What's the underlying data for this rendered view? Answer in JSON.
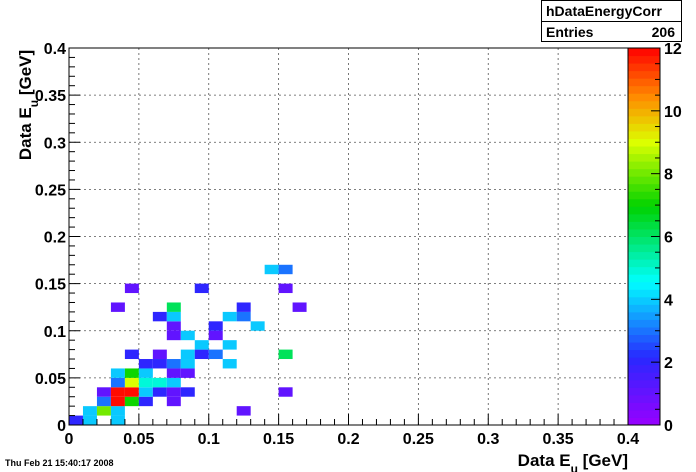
{
  "stats": {
    "title": "hDataEnergyCorr",
    "entries_label": "Entries",
    "entries_value": "206"
  },
  "timestamp": "Thu Feb 21 15:40:17 2008",
  "chart_data": {
    "type": "heatmap",
    "xlabel": "Data E_u [GeV]",
    "ylabel": "Data E_u [GeV]",
    "xlim": [
      0,
      0.4
    ],
    "ylim": [
      0,
      0.4
    ],
    "xticks": [
      "0",
      "0.05",
      "0.1",
      "0.15",
      "0.2",
      "0.25",
      "0.3",
      "0.35",
      "0.4"
    ],
    "yticks": [
      "0",
      "0.05",
      "0.1",
      "0.15",
      "0.2",
      "0.25",
      "0.3",
      "0.35",
      "0.4"
    ],
    "zlim": [
      0,
      12
    ],
    "zticks": [
      "0",
      "2",
      "4",
      "6",
      "8",
      "10",
      "12"
    ],
    "grid": true,
    "bin_width": 0.01,
    "cells": [
      {
        "x": 0.0,
        "y": 0.01,
        "z": 2
      },
      {
        "x": 0.01,
        "y": 0.01,
        "z": 4
      },
      {
        "x": 0.01,
        "y": 0.02,
        "z": 4
      },
      {
        "x": 0.03,
        "y": 0.01,
        "z": 4
      },
      {
        "x": 0.02,
        "y": 0.02,
        "z": 8
      },
      {
        "x": 0.03,
        "y": 0.02,
        "z": 4
      },
      {
        "x": 0.02,
        "y": 0.03,
        "z": 3
      },
      {
        "x": 0.03,
        "y": 0.03,
        "z": 12
      },
      {
        "x": 0.04,
        "y": 0.03,
        "z": 7
      },
      {
        "x": 0.05,
        "y": 0.03,
        "z": 2
      },
      {
        "x": 0.07,
        "y": 0.03,
        "z": 1
      },
      {
        "x": 0.02,
        "y": 0.04,
        "z": 1
      },
      {
        "x": 0.03,
        "y": 0.04,
        "z": 12
      },
      {
        "x": 0.04,
        "y": 0.04,
        "z": 12
      },
      {
        "x": 0.05,
        "y": 0.04,
        "z": 4
      },
      {
        "x": 0.06,
        "y": 0.04,
        "z": 2
      },
      {
        "x": 0.07,
        "y": 0.04,
        "z": 1
      },
      {
        "x": 0.08,
        "y": 0.04,
        "z": 2
      },
      {
        "x": 0.15,
        "y": 0.04,
        "z": 1
      },
      {
        "x": 0.03,
        "y": 0.05,
        "z": 3
      },
      {
        "x": 0.04,
        "y": 0.05,
        "z": 9
      },
      {
        "x": 0.05,
        "y": 0.05,
        "z": 5
      },
      {
        "x": 0.06,
        "y": 0.05,
        "z": 5
      },
      {
        "x": 0.07,
        "y": 0.05,
        "z": 4
      },
      {
        "x": 0.03,
        "y": 0.06,
        "z": 4
      },
      {
        "x": 0.04,
        "y": 0.06,
        "z": 7
      },
      {
        "x": 0.05,
        "y": 0.06,
        "z": 4
      },
      {
        "x": 0.07,
        "y": 0.06,
        "z": 1
      },
      {
        "x": 0.08,
        "y": 0.06,
        "z": 1
      },
      {
        "x": 0.05,
        "y": 0.07,
        "z": 2
      },
      {
        "x": 0.06,
        "y": 0.07,
        "z": 2
      },
      {
        "x": 0.07,
        "y": 0.07,
        "z": 3
      },
      {
        "x": 0.08,
        "y": 0.07,
        "z": 4
      },
      {
        "x": 0.11,
        "y": 0.07,
        "z": 4
      },
      {
        "x": 0.04,
        "y": 0.08,
        "z": 2
      },
      {
        "x": 0.06,
        "y": 0.08,
        "z": 1
      },
      {
        "x": 0.08,
        "y": 0.08,
        "z": 4
      },
      {
        "x": 0.09,
        "y": 0.08,
        "z": 2
      },
      {
        "x": 0.1,
        "y": 0.08,
        "z": 3
      },
      {
        "x": 0.15,
        "y": 0.08,
        "z": 6
      },
      {
        "x": 0.09,
        "y": 0.09,
        "z": 4
      },
      {
        "x": 0.11,
        "y": 0.09,
        "z": 4
      },
      {
        "x": 0.07,
        "y": 0.1,
        "z": 1
      },
      {
        "x": 0.08,
        "y": 0.1,
        "z": 4
      },
      {
        "x": 0.1,
        "y": 0.1,
        "z": 1
      },
      {
        "x": 0.07,
        "y": 0.11,
        "z": 1
      },
      {
        "x": 0.1,
        "y": 0.11,
        "z": 2
      },
      {
        "x": 0.13,
        "y": 0.11,
        "z": 4
      },
      {
        "x": 0.06,
        "y": 0.12,
        "z": 2
      },
      {
        "x": 0.07,
        "y": 0.12,
        "z": 4
      },
      {
        "x": 0.11,
        "y": 0.12,
        "z": 4
      },
      {
        "x": 0.12,
        "y": 0.12,
        "z": 3
      },
      {
        "x": 0.03,
        "y": 0.13,
        "z": 1
      },
      {
        "x": 0.07,
        "y": 0.13,
        "z": 6
      },
      {
        "x": 0.12,
        "y": 0.13,
        "z": 2
      },
      {
        "x": 0.16,
        "y": 0.13,
        "z": 1
      },
      {
        "x": 0.04,
        "y": 0.15,
        "z": 1
      },
      {
        "x": 0.09,
        "y": 0.15,
        "z": 2
      },
      {
        "x": 0.15,
        "y": 0.15,
        "z": 1
      },
      {
        "x": 0.12,
        "y": 0.02,
        "z": 1
      },
      {
        "x": 0.14,
        "y": 0.17,
        "z": 4
      },
      {
        "x": 0.15,
        "y": 0.17,
        "z": 3
      }
    ]
  }
}
